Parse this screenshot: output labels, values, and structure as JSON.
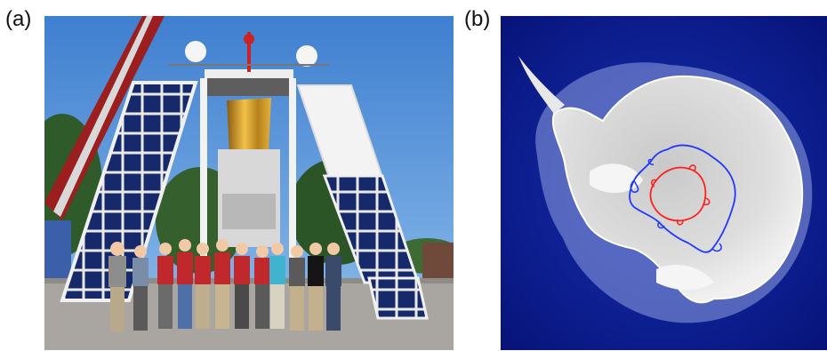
{
  "panels": [
    {
      "label": "(a)",
      "content": "balloon-payload-team-photo"
    },
    {
      "label": "(b)",
      "content": "antarctica-flight-track-map"
    }
  ],
  "colors": {
    "sky": "#4f8fd6",
    "tarmac": "#a9a6a1",
    "solar_panel": "#1b2d6e",
    "panel_frame": "#e8e8e8",
    "foil": "#d4a12a",
    "ocean": "#0a1a8a",
    "ice": "#d9d9d9",
    "track_outer": "#1f3cff",
    "track_inner": "#ff1f1f"
  }
}
